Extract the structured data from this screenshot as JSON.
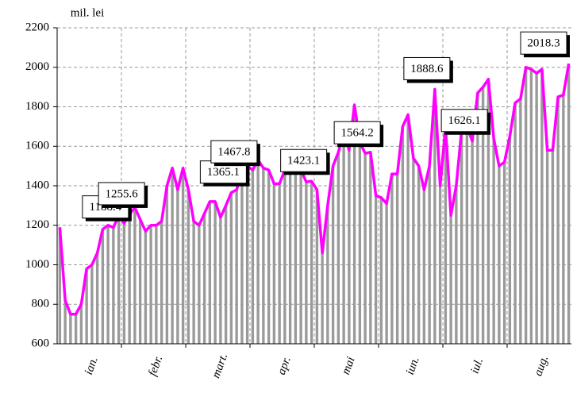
{
  "chart_data": {
    "type": "bar_line",
    "y_label": "mil. lei",
    "categories": [
      null,
      null,
      null,
      null,
      null,
      null,
      "ian.",
      null,
      null,
      null,
      null,
      null,
      null,
      null,
      null,
      null,
      null,
      null,
      "febr.",
      null,
      null,
      null,
      null,
      null,
      null,
      null,
      null,
      null,
      null,
      null,
      "mart.",
      null,
      null,
      null,
      null,
      null,
      null,
      null,
      null,
      null,
      null,
      null,
      "apr.",
      null,
      null,
      null,
      null,
      null,
      null,
      null,
      null,
      null,
      null,
      null,
      "mai",
      null,
      null,
      null,
      null,
      null,
      null,
      null,
      null,
      null,
      null,
      null,
      "iun.",
      null,
      null,
      null,
      null,
      null,
      null,
      null,
      null,
      null,
      null,
      null,
      "iul.",
      null,
      null,
      null,
      null,
      null,
      null,
      null,
      null,
      null,
      null,
      null,
      "aug.",
      null,
      null,
      null,
      null,
      null
    ],
    "values": [
      1190,
      820,
      750,
      750,
      800,
      980,
      1000,
      1060,
      1180,
      1200,
      1188.4,
      1250,
      1210,
      1255.6,
      1290,
      1230,
      1170,
      1200,
      1200,
      1220,
      1400,
      1490,
      1380,
      1490,
      1380,
      1220,
      1200,
      1260,
      1320,
      1320,
      1240,
      1300,
      1365.1,
      1380,
      1467.8,
      1500,
      1480,
      1530,
      1490,
      1480,
      1410,
      1410,
      1480,
      1540,
      1540,
      1480,
      1420,
      1423.1,
      1380,
      1060,
      1300,
      1500,
      1570,
      1670,
      1580,
      1810,
      1620,
      1564.2,
      1570,
      1350,
      1340,
      1310,
      1460,
      1460,
      1700,
      1760,
      1540,
      1500,
      1380,
      1500,
      1888.6,
      1400,
      1700,
      1250,
      1400,
      1680,
      1700,
      1626.1,
      1870,
      1900,
      1940,
      1640,
      1500,
      1520,
      1650,
      1820,
      1840,
      2000,
      1990,
      1970,
      1990,
      1580,
      1580,
      1850,
      1860,
      2018.3
    ],
    "value_labels": [
      null,
      null,
      null,
      null,
      null,
      null,
      null,
      null,
      null,
      null,
      "1188.4",
      null,
      null,
      "1255.6",
      null,
      null,
      null,
      null,
      null,
      null,
      null,
      null,
      null,
      null,
      null,
      null,
      null,
      null,
      null,
      null,
      null,
      null,
      "1365.1",
      null,
      "1467.8",
      null,
      null,
      null,
      null,
      null,
      null,
      null,
      null,
      null,
      null,
      null,
      null,
      "1423.1",
      null,
      null,
      null,
      null,
      null,
      null,
      null,
      null,
      null,
      "1564.2",
      null,
      null,
      null,
      null,
      null,
      null,
      null,
      null,
      null,
      null,
      null,
      null,
      "1888.6",
      null,
      null,
      null,
      null,
      null,
      null,
      "1626.1",
      null,
      null,
      null,
      null,
      null,
      null,
      null,
      null,
      null,
      null,
      null,
      null,
      null,
      null,
      null,
      null,
      null,
      "2018.3"
    ],
    "bar_color": "#9a9a9a",
    "line_color": "#ff00ff",
    "ylim": [
      600,
      2200
    ],
    "yticks": [
      600,
      800,
      1000,
      1200,
      1400,
      1600,
      1800,
      2000,
      2200
    ],
    "grid": true
  }
}
